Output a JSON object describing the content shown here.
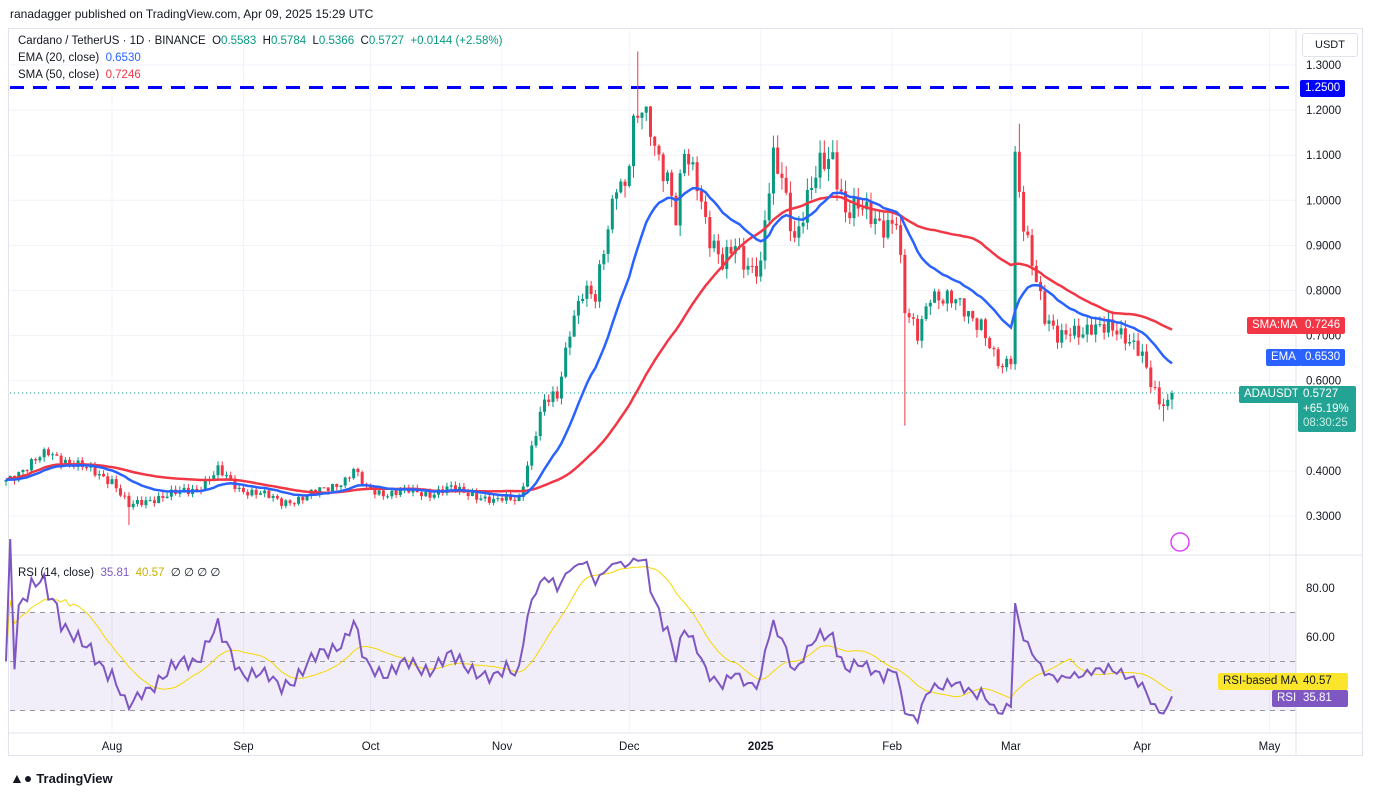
{
  "publish_line": "ranadagger published on TradingView.com, Apr 09, 2025 15:29 UTC",
  "symbol": {
    "name": "Cardano / TetherUS · 1D · BINANCE",
    "o_label": "O",
    "open": "0.5583",
    "h_label": "H",
    "high": "0.5784",
    "l_label": "L",
    "low": "0.5366",
    "c_label": "C",
    "close": "0.5727",
    "change": "+0.0144 (+2.58%)"
  },
  "indicators": {
    "ema_label": "EMA (20, close)",
    "ema_value": "0.6530",
    "sma_label": "SMA (50, close)",
    "sma_value": "0.7246",
    "rsi_label": "RSI (14, close)",
    "rsi_value": "35.81",
    "rsi_ma_value": "40.57",
    "rsi_extra": "∅ ∅ ∅ ∅"
  },
  "price_axis": {
    "currency": "USDT",
    "labels": [
      "1.3000",
      "1.2000",
      "1.1000",
      "1.0000",
      "0.9000",
      "0.8000",
      "0.7000",
      "0.6000",
      "0.4000",
      "0.3000"
    ]
  },
  "tags": {
    "level": "1.2500",
    "sma_name": "SMA:MA",
    "sma": "0.7246",
    "ema_name": "EMA",
    "ema": "0.6530",
    "sym": "ADAUSDT",
    "price": "0.5727",
    "pct": "+65.19%",
    "countdown": "08:30:25",
    "rsi_ma_name": "RSI-based MA",
    "rsi_ma": "40.57",
    "rsi_name": "RSI",
    "rsi": "35.81"
  },
  "rsi_axis": [
    "80.00",
    "60.00"
  ],
  "footer": {
    "brand": "TradingView"
  },
  "colors": {
    "up": "#089981",
    "down": "#f23645",
    "ema": "#2962ff",
    "sma": "#f23645",
    "level": "#0000ff",
    "rsi": "#7e57c2",
    "rsi_ma": "#f5d800"
  },
  "chart_data": {
    "type": "candlestick",
    "title": "Cardano / TetherUS · 1D · BINANCE",
    "start_date": "2024-07-07",
    "x_ticks": [
      {
        "label": "Aug",
        "day": 25
      },
      {
        "label": "Sep",
        "day": 56
      },
      {
        "label": "Oct",
        "day": 86
      },
      {
        "label": "Nov",
        "day": 117
      },
      {
        "label": "Dec",
        "day": 147
      },
      {
        "label": "2025",
        "day": 178
      },
      {
        "label": "Feb",
        "day": 209
      },
      {
        "label": "Mar",
        "day": 237
      },
      {
        "label": "Apr",
        "day": 268
      },
      {
        "label": "May",
        "day": 298
      }
    ],
    "ylim": [
      0.24,
      1.35
    ],
    "horizontal_level": 1.25,
    "close_anchors": [
      [
        0,
        0.38
      ],
      [
        5,
        0.41
      ],
      [
        10,
        0.44
      ],
      [
        15,
        0.42
      ],
      [
        20,
        0.4
      ],
      [
        25,
        0.38
      ],
      [
        29,
        0.32
      ],
      [
        35,
        0.34
      ],
      [
        45,
        0.36
      ],
      [
        50,
        0.4
      ],
      [
        55,
        0.36
      ],
      [
        60,
        0.35
      ],
      [
        65,
        0.33
      ],
      [
        70,
        0.34
      ],
      [
        75,
        0.36
      ],
      [
        80,
        0.38
      ],
      [
        82,
        0.4
      ],
      [
        85,
        0.36
      ],
      [
        90,
        0.35
      ],
      [
        95,
        0.355
      ],
      [
        100,
        0.35
      ],
      [
        105,
        0.36
      ],
      [
        110,
        0.35
      ],
      [
        115,
        0.33
      ],
      [
        118,
        0.34
      ],
      [
        121,
        0.34
      ],
      [
        124,
        0.45
      ],
      [
        127,
        0.55
      ],
      [
        130,
        0.57
      ],
      [
        133,
        0.72
      ],
      [
        136,
        0.79
      ],
      [
        139,
        0.78
      ],
      [
        141,
        0.9
      ],
      [
        144,
        1.05
      ],
      [
        146,
        1.02
      ],
      [
        148,
        1.15
      ],
      [
        150,
        1.2
      ],
      [
        152,
        1.17
      ],
      [
        154,
        1.1
      ],
      [
        156,
        1.05
      ],
      [
        158,
        0.95
      ],
      [
        160,
        1.1
      ],
      [
        163,
        1.05
      ],
      [
        166,
        0.92
      ],
      [
        169,
        0.85
      ],
      [
        172,
        0.9
      ],
      [
        175,
        0.86
      ],
      [
        178,
        0.85
      ],
      [
        179,
        0.95
      ],
      [
        181,
        1.08
      ],
      [
        183,
        1.05
      ],
      [
        186,
        0.92
      ],
      [
        189,
        1.0
      ],
      [
        192,
        1.07
      ],
      [
        195,
        1.1
      ],
      [
        198,
        0.98
      ],
      [
        201,
        0.98
      ],
      [
        204,
        0.96
      ],
      [
        207,
        0.95
      ],
      [
        210,
        0.96
      ],
      [
        212,
        0.75
      ],
      [
        215,
        0.7
      ],
      [
        218,
        0.8
      ],
      [
        221,
        0.78
      ],
      [
        224,
        0.77
      ],
      [
        227,
        0.75
      ],
      [
        230,
        0.73
      ],
      [
        233,
        0.65
      ],
      [
        235,
        0.62
      ],
      [
        237,
        0.65
      ],
      [
        238,
        1.1
      ],
      [
        240,
        0.96
      ],
      [
        243,
        0.82
      ],
      [
        245,
        0.73
      ],
      [
        248,
        0.7
      ],
      [
        251,
        0.72
      ],
      [
        254,
        0.7
      ],
      [
        257,
        0.71
      ],
      [
        260,
        0.73
      ],
      [
        262,
        0.72
      ],
      [
        265,
        0.68
      ],
      [
        268,
        0.65
      ],
      [
        270,
        0.6
      ],
      [
        272,
        0.56
      ],
      [
        274,
        0.55
      ],
      [
        275,
        0.5727
      ]
    ],
    "wick_extremes": [
      [
        149,
        "high",
        1.33
      ],
      [
        239,
        "high",
        1.17
      ],
      [
        212,
        "low",
        0.5
      ],
      [
        29,
        "low",
        0.28
      ],
      [
        273,
        "low",
        0.51
      ]
    ],
    "series": [
      {
        "name": "EMA (20, close)",
        "last": 0.653
      },
      {
        "name": "SMA (50, close)",
        "last": 0.7246
      },
      {
        "name": "RSI (14, close)",
        "last": 35.81
      },
      {
        "name": "RSI-based MA",
        "last": 40.57
      }
    ],
    "rsi_levels": [
      70,
      50,
      30
    ]
  }
}
